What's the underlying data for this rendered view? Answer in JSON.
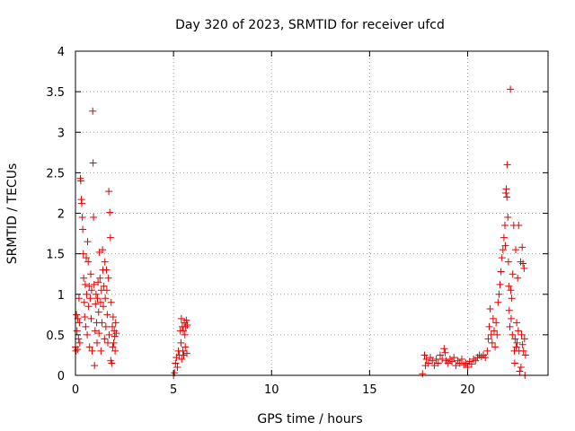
{
  "chart_data": {
    "type": "scatter",
    "title": "Day 320 of 2023, SRMTID for receiver ufcd",
    "xlabel": "GPS time / hours",
    "ylabel": "SRMTID / TECUs",
    "xlim": [
      0,
      24.1
    ],
    "ylim": [
      0,
      4
    ],
    "x_ticks": [
      0,
      5,
      10,
      15,
      20
    ],
    "x_tick_labels": [
      "0",
      "5",
      "10",
      "15",
      "20"
    ],
    "y_ticks": [
      0,
      0.5,
      1,
      1.5,
      2,
      2.5,
      3,
      3.5,
      4
    ],
    "y_tick_labels": [
      "0",
      "0.5",
      "1",
      "1.5",
      "2",
      "2.5",
      "3",
      "3.5",
      "4"
    ],
    "grid": true,
    "marker": "+",
    "color": "#e00000",
    "series": [
      {
        "name": "SRMTID",
        "points": [
          [
            0.0,
            0.35
          ],
          [
            0.02,
            0.3
          ],
          [
            0.05,
            0.75
          ],
          [
            0.08,
            0.55
          ],
          [
            0.1,
            0.32
          ],
          [
            0.12,
            0.7
          ],
          [
            0.15,
            0.45
          ],
          [
            0.18,
            0.95
          ],
          [
            0.2,
            0.65
          ],
          [
            0.22,
            0.4
          ],
          [
            0.25,
            2.43
          ],
          [
            0.27,
            2.4
          ],
          [
            0.3,
            2.17
          ],
          [
            0.32,
            2.12
          ],
          [
            0.35,
            1.95
          ],
          [
            0.37,
            1.8
          ],
          [
            0.4,
            1.5
          ],
          [
            0.42,
            1.2
          ],
          [
            0.45,
            0.9
          ],
          [
            0.47,
            0.72
          ],
          [
            0.5,
            1.12
          ],
          [
            0.52,
            0.6
          ],
          [
            0.55,
            1.45
          ],
          [
            0.57,
            1.0
          ],
          [
            0.6,
            0.5
          ],
          [
            0.62,
            1.65
          ],
          [
            0.65,
            1.4
          ],
          [
            0.67,
            0.85
          ],
          [
            0.7,
            1.1
          ],
          [
            0.72,
            0.35
          ],
          [
            0.75,
            0.95
          ],
          [
            0.78,
            1.25
          ],
          [
            0.8,
            0.7
          ],
          [
            0.82,
            1.05
          ],
          [
            0.85,
            0.3
          ],
          [
            0.88,
            3.26
          ],
          [
            0.9,
            2.62
          ],
          [
            0.92,
            1.95
          ],
          [
            0.95,
            1.12
          ],
          [
            0.97,
            0.12
          ],
          [
            1.0,
            0.55
          ],
          [
            1.02,
            0.88
          ],
          [
            1.05,
            1.0
          ],
          [
            1.08,
            0.65
          ],
          [
            1.1,
            0.4
          ],
          [
            1.12,
            0.95
          ],
          [
            1.15,
            1.15
          ],
          [
            1.18,
            0.78
          ],
          [
            1.2,
            0.52
          ],
          [
            1.22,
            1.52
          ],
          [
            1.25,
            1.2
          ],
          [
            1.28,
            0.9
          ],
          [
            1.3,
            0.3
          ],
          [
            1.32,
            1.05
          ],
          [
            1.35,
            0.65
          ],
          [
            1.38,
            1.55
          ],
          [
            1.4,
            1.3
          ],
          [
            1.42,
            0.85
          ],
          [
            1.45,
            1.1
          ],
          [
            1.48,
            0.45
          ],
          [
            1.5,
            1.4
          ],
          [
            1.52,
            0.95
          ],
          [
            1.55,
            0.6
          ],
          [
            1.58,
            1.3
          ],
          [
            1.6,
            1.05
          ],
          [
            1.62,
            0.75
          ],
          [
            1.65,
            0.4
          ],
          [
            1.68,
            1.2
          ],
          [
            1.7,
            2.27
          ],
          [
            1.72,
            0.5
          ],
          [
            1.75,
            2.01
          ],
          [
            1.78,
            1.7
          ],
          [
            1.8,
            0.18
          ],
          [
            1.82,
            0.9
          ],
          [
            1.85,
            0.15
          ],
          [
            1.88,
            0.6
          ],
          [
            1.9,
            0.35
          ],
          [
            1.92,
            0.72
          ],
          [
            1.95,
            0.4
          ],
          [
            1.98,
            0.55
          ],
          [
            2.0,
            0.48
          ],
          [
            2.02,
            0.3
          ],
          [
            2.05,
            0.65
          ],
          [
            2.08,
            0.52
          ],
          [
            5.0,
            0.0
          ],
          [
            5.05,
            0.03
          ],
          [
            5.1,
            0.15
          ],
          [
            5.15,
            0.22
          ],
          [
            5.2,
            0.1
          ],
          [
            5.25,
            0.3
          ],
          [
            5.3,
            0.25
          ],
          [
            5.35,
            0.55
          ],
          [
            5.38,
            0.4
          ],
          [
            5.4,
            0.7
          ],
          [
            5.42,
            0.2
          ],
          [
            5.45,
            0.6
          ],
          [
            5.48,
            0.3
          ],
          [
            5.5,
            0.55
          ],
          [
            5.52,
            0.25
          ],
          [
            5.55,
            0.65
          ],
          [
            5.58,
            0.5
          ],
          [
            5.6,
            0.35
          ],
          [
            5.62,
            0.6
          ],
          [
            5.65,
            0.68
          ],
          [
            5.68,
            0.27
          ],
          [
            5.7,
            0.62
          ],
          [
            17.7,
            0.02
          ],
          [
            17.8,
            0.25
          ],
          [
            17.85,
            0.12
          ],
          [
            17.9,
            0.2
          ],
          [
            18.0,
            0.15
          ],
          [
            18.1,
            0.22
          ],
          [
            18.2,
            0.18
          ],
          [
            18.3,
            0.12
          ],
          [
            18.4,
            0.2
          ],
          [
            18.5,
            0.15
          ],
          [
            18.6,
            0.25
          ],
          [
            18.7,
            0.2
          ],
          [
            18.8,
            0.33
          ],
          [
            18.85,
            0.28
          ],
          [
            18.9,
            0.18
          ],
          [
            19.0,
            0.15
          ],
          [
            19.1,
            0.2
          ],
          [
            19.2,
            0.17
          ],
          [
            19.3,
            0.22
          ],
          [
            19.4,
            0.12
          ],
          [
            19.5,
            0.18
          ],
          [
            19.6,
            0.15
          ],
          [
            19.7,
            0.2
          ],
          [
            19.8,
            0.13
          ],
          [
            19.9,
            0.15
          ],
          [
            20.0,
            0.1
          ],
          [
            20.1,
            0.17
          ],
          [
            20.2,
            0.14
          ],
          [
            20.3,
            0.2
          ],
          [
            20.4,
            0.18
          ],
          [
            20.5,
            0.22
          ],
          [
            20.6,
            0.25
          ],
          [
            20.7,
            0.23
          ],
          [
            20.8,
            0.25
          ],
          [
            20.9,
            0.22
          ],
          [
            21.0,
            0.3
          ],
          [
            21.05,
            0.45
          ],
          [
            21.1,
            0.6
          ],
          [
            21.15,
            0.82
          ],
          [
            21.2,
            0.5
          ],
          [
            21.25,
            0.4
          ],
          [
            21.3,
            0.7
          ],
          [
            21.35,
            0.55
          ],
          [
            21.4,
            0.35
          ],
          [
            21.45,
            0.65
          ],
          [
            21.5,
            0.5
          ],
          [
            21.55,
            0.9
          ],
          [
            21.6,
            1.0
          ],
          [
            21.65,
            1.12
          ],
          [
            21.7,
            1.28
          ],
          [
            21.75,
            1.45
          ],
          [
            21.8,
            1.55
          ],
          [
            21.85,
            1.7
          ],
          [
            21.9,
            1.85
          ],
          [
            21.92,
            1.6
          ],
          [
            21.95,
            2.25
          ],
          [
            21.97,
            2.3
          ],
          [
            22.0,
            2.2
          ],
          [
            22.02,
            2.6
          ],
          [
            22.05,
            1.95
          ],
          [
            22.08,
            1.4
          ],
          [
            22.1,
            1.1
          ],
          [
            22.12,
            0.8
          ],
          [
            22.15,
            0.6
          ],
          [
            22.18,
            3.53
          ],
          [
            22.2,
            1.05
          ],
          [
            22.22,
            0.7
          ],
          [
            22.25,
            0.95
          ],
          [
            22.28,
            0.5
          ],
          [
            22.3,
            1.25
          ],
          [
            22.35,
            1.85
          ],
          [
            22.38,
            0.3
          ],
          [
            22.4,
            0.15
          ],
          [
            22.42,
            0.45
          ],
          [
            22.45,
            1.55
          ],
          [
            22.48,
            0.35
          ],
          [
            22.5,
            0.65
          ],
          [
            22.52,
            0.4
          ],
          [
            22.55,
            1.2
          ],
          [
            22.58,
            0.55
          ],
          [
            22.6,
            1.85
          ],
          [
            22.62,
            0.3
          ],
          [
            22.65,
            0.05
          ],
          [
            22.7,
            1.4
          ],
          [
            22.72,
            0.1
          ],
          [
            22.75,
            0.5
          ],
          [
            22.78,
            1.58
          ],
          [
            22.8,
            0.38
          ],
          [
            22.82,
            1.38
          ],
          [
            22.85,
            0.3
          ],
          [
            22.88,
            1.32
          ],
          [
            22.9,
            0.45
          ],
          [
            22.92,
            0.0
          ],
          [
            22.95,
            0.25
          ]
        ]
      }
    ]
  }
}
